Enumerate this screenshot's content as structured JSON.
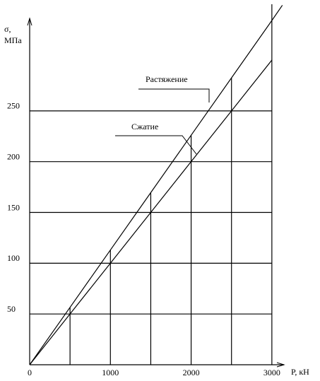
{
  "chart_data": {
    "type": "line",
    "x_label": "P, кН",
    "y_label": [
      "σ,",
      "МПа"
    ],
    "x": [
      0,
      500,
      1000,
      1500,
      2000,
      2500,
      3000,
      3130
    ],
    "series": [
      {
        "name": "Растяжение",
        "color": "#000000",
        "values": [
          0,
          56.5,
          113,
          169.5,
          226,
          282.5,
          339,
          354
        ]
      },
      {
        "name": "Сжатие",
        "color": "#000000",
        "values": [
          0,
          50,
          100,
          150,
          200,
          250,
          300,
          null
        ]
      }
    ],
    "xlim": [
      0,
      3150
    ],
    "ylim": [
      0,
      355
    ],
    "xticks": [
      0,
      1000,
      2000,
      3000
    ],
    "yticks": [
      50,
      100,
      150,
      200,
      250
    ],
    "grid": true
  }
}
